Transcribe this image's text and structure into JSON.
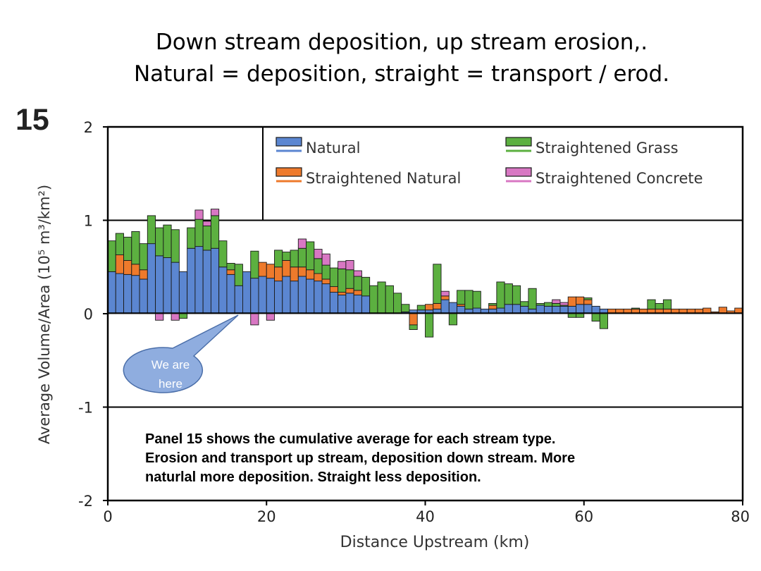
{
  "slide": {
    "title_line1": "Down stream deposition, up stream erosion,.",
    "title_line2": "Natural = deposition, straight = transport / erod.",
    "panel_number": "15",
    "callout_line1": "We are",
    "callout_line2": "here",
    "note_line1": "Panel 15 shows the cumulative average for each stream type.",
    "note_line2": "Erosion and transport up stream, deposition down stream.  More",
    "note_line3": "naturlal more deposition. Straight less deposition."
  },
  "colors": {
    "natural": "#5b86d1",
    "straightened_natural": "#ee7a2c",
    "straightened_grass": "#5cb040",
    "straightened_concrete": "#d877c3",
    "callout": "#8faddf"
  },
  "chart_data": {
    "type": "bar",
    "stacked": true,
    "xlabel": "Distance Upstream (km)",
    "ylabel": "Average Volume/Area (10⁵ m³/km²)",
    "xlim": [
      0,
      80
    ],
    "ylim": [
      -2,
      2
    ],
    "xticks": [
      "0",
      "20",
      "40",
      "60",
      "80"
    ],
    "yticks": [
      "-2",
      "-1",
      "0",
      "1",
      "2"
    ],
    "gridlines_y": [
      -1,
      1
    ],
    "legend_location": "top-right",
    "bar_width_km": 1,
    "x": [
      0.5,
      1.5,
      2.5,
      3.5,
      4.5,
      5.5,
      6.5,
      7.5,
      8.5,
      9.5,
      10.5,
      11.5,
      12.5,
      13.5,
      14.5,
      15.5,
      16.5,
      17.5,
      18.5,
      19.5,
      20.5,
      21.5,
      22.5,
      23.5,
      24.5,
      25.5,
      26.5,
      27.5,
      28.5,
      29.5,
      30.5,
      31.5,
      32.5,
      33.5,
      34.5,
      35.5,
      36.5,
      37.5,
      38.5,
      39.5,
      40.5,
      41.5,
      42.5,
      43.5,
      44.5,
      45.5,
      46.5,
      47.5,
      48.5,
      49.5,
      50.5,
      51.5,
      52.5,
      53.5,
      54.5,
      55.5,
      56.5,
      57.5,
      58.5,
      59.5,
      60.5,
      61.5,
      62.5,
      63.5,
      64.5,
      65.5,
      66.5,
      67.5,
      68.5,
      69.5,
      70.5,
      71.5,
      72.5,
      73.5,
      74.5,
      75.5,
      76.5,
      77.5,
      78.5,
      79.5
    ],
    "series": [
      {
        "name": "Natural",
        "values": [
          0.45,
          0.43,
          0.42,
          0.41,
          0.37,
          0.75,
          0.62,
          0.6,
          0.55,
          0.45,
          0.7,
          0.72,
          0.68,
          0.7,
          0.5,
          0.42,
          0.3,
          0.45,
          0.38,
          0.4,
          0.38,
          0.35,
          0.4,
          0.35,
          0.4,
          0.37,
          0.35,
          0.32,
          0.23,
          0.2,
          0.22,
          0.2,
          0.19,
          0.0,
          0.0,
          0.0,
          0.0,
          0.02,
          0.04,
          0.04,
          0.04,
          0.05,
          0.15,
          0.12,
          0.08,
          0.05,
          0.06,
          0.05,
          0.05,
          0.06,
          0.1,
          0.1,
          0.08,
          0.05,
          0.09,
          0.08,
          0.08,
          0.08,
          0.08,
          0.1,
          0.1,
          0.08,
          0.05,
          0.0,
          0.0,
          0.0,
          0.0,
          0.0,
          0.0,
          0.0,
          0.0,
          0.0,
          0.0,
          0.0,
          0.0,
          0.0,
          0.0,
          0.0,
          0.0,
          0.0
        ]
      },
      {
        "name": "Straightened Natural",
        "values": [
          0.0,
          0.2,
          0.15,
          0.12,
          0.1,
          0.0,
          0.0,
          0.0,
          0.0,
          0.0,
          0.0,
          0.0,
          0.0,
          0.0,
          0.0,
          0.05,
          0.0,
          0.0,
          0.0,
          0.15,
          0.15,
          0.15,
          0.17,
          0.15,
          0.1,
          0.1,
          0.08,
          0.05,
          0.06,
          0.03,
          0.05,
          0.05,
          0.0,
          0.0,
          0.0,
          0.0,
          0.0,
          0.0,
          -0.12,
          0.0,
          0.06,
          0.06,
          0.04,
          0.0,
          0.02,
          0.0,
          0.0,
          0.0,
          0.04,
          0.0,
          0.0,
          0.0,
          0.0,
          0.0,
          0.0,
          0.0,
          0.0,
          0.0,
          0.1,
          0.08,
          0.05,
          0.0,
          0.0,
          0.05,
          0.05,
          0.05,
          0.05,
          0.05,
          0.05,
          0.05,
          0.05,
          0.05,
          0.05,
          0.05,
          0.05,
          0.06,
          0.02,
          0.07,
          0.03,
          0.06
        ]
      },
      {
        "name": "Straightened Grass",
        "values": [
          0.33,
          0.23,
          0.25,
          0.35,
          0.28,
          0.3,
          0.3,
          0.35,
          0.35,
          -0.05,
          0.22,
          0.29,
          0.26,
          0.35,
          0.28,
          0.07,
          0.23,
          0.0,
          0.29,
          0.0,
          0.0,
          0.18,
          0.09,
          0.18,
          0.2,
          0.3,
          0.16,
          0.15,
          0.2,
          0.25,
          0.2,
          0.15,
          0.2,
          0.3,
          0.34,
          0.3,
          0.22,
          0.08,
          -0.05,
          0.05,
          -0.25,
          0.42,
          0.0,
          -0.12,
          0.15,
          0.2,
          0.18,
          0.0,
          0.02,
          0.28,
          0.22,
          0.2,
          0.05,
          0.22,
          0.02,
          0.04,
          0.03,
          0.01,
          -0.04,
          -0.04,
          0.02,
          -0.08,
          -0.16,
          0.0,
          0.0,
          0.0,
          0.01,
          0.0,
          0.1,
          0.06,
          0.1,
          0.0,
          0.0,
          0.0,
          0.0,
          0.0,
          0.0,
          0.0,
          0.0,
          0.0
        ]
      },
      {
        "name": "Straightened Concrete",
        "values": [
          0.0,
          0.0,
          0.0,
          0.0,
          0.0,
          0.0,
          -0.07,
          0.0,
          -0.07,
          0.0,
          0.0,
          0.1,
          0.05,
          0.07,
          0.0,
          0.0,
          0.0,
          0.0,
          -0.12,
          0.0,
          -0.07,
          0.0,
          0.0,
          0.0,
          0.1,
          0.0,
          0.1,
          0.12,
          0.0,
          0.08,
          0.1,
          0.06,
          0.0,
          0.0,
          0.0,
          0.0,
          0.0,
          0.0,
          0.0,
          0.0,
          0.0,
          0.0,
          0.05,
          0.0,
          0.0,
          0.0,
          0.0,
          0.0,
          0.0,
          0.0,
          0.0,
          0.0,
          0.0,
          0.0,
          0.0,
          0.0,
          0.04,
          0.03,
          0.0,
          0.0,
          0.0,
          0.0,
          0.0,
          0.0,
          0.0,
          0.0,
          0.0,
          0.0,
          0.0,
          0.0,
          0.0,
          0.0,
          0.0,
          0.0,
          0.0,
          0.0,
          0.0,
          0.0,
          0.0,
          0.0
        ]
      }
    ]
  }
}
